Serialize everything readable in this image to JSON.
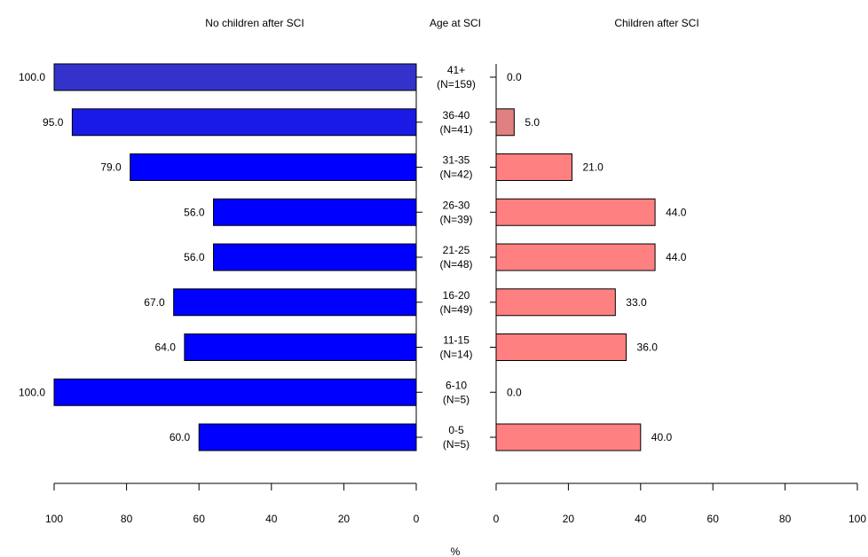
{
  "chart_data": {
    "type": "bar",
    "layout": "back-to-back horizontal",
    "title_left": "No children after SCI",
    "title_center": "Age at SCI",
    "title_right": "Children after SCI",
    "xlabel": "%",
    "xlim": [
      0,
      100
    ],
    "ticks": [
      0,
      20,
      40,
      60,
      80,
      100
    ],
    "tick_labels": [
      "0",
      "20",
      "40",
      "60",
      "80",
      "100"
    ],
    "categories": [
      {
        "age": "41+",
        "n": "(N=159)"
      },
      {
        "age": "36-40",
        "n": "(N=41)"
      },
      {
        "age": "31-35",
        "n": "(N=42)"
      },
      {
        "age": "26-30",
        "n": "(N=39)"
      },
      {
        "age": "21-25",
        "n": "(N=48)"
      },
      {
        "age": "16-20",
        "n": "(N=49)"
      },
      {
        "age": "11-15",
        "n": "(N=14)"
      },
      {
        "age": "6-10",
        "n": "(N=5)"
      },
      {
        "age": "0-5",
        "n": "(N=5)"
      }
    ],
    "series": [
      {
        "side": "left",
        "values": [
          100.0,
          95.0,
          79.0,
          56.0,
          56.0,
          67.0,
          64.0,
          100.0,
          60.0
        ],
        "labels": [
          "100.0",
          "95.0",
          "79.0",
          "56.0",
          "56.0",
          "67.0",
          "64.0",
          "100.0",
          "60.0"
        ],
        "colors": [
          "#3333cc",
          "#1a1ae6",
          "#0000ff",
          "#0000ff",
          "#0000ff",
          "#0000ff",
          "#0000ff",
          "#0000ff",
          "#0000ff"
        ]
      },
      {
        "side": "right",
        "values": [
          0.0,
          5.0,
          21.0,
          44.0,
          44.0,
          33.0,
          36.0,
          0.0,
          40.0
        ],
        "labels": [
          "0.0",
          "5.0",
          "21.0",
          "44.0",
          "44.0",
          "33.0",
          "36.0",
          "0.0",
          "40.0"
        ],
        "colors": [
          "#e08080",
          "#e08080",
          "#ff8080",
          "#ff8080",
          "#ff8080",
          "#ff8080",
          "#ff8080",
          "#ff8080",
          "#ff8080"
        ]
      }
    ]
  }
}
